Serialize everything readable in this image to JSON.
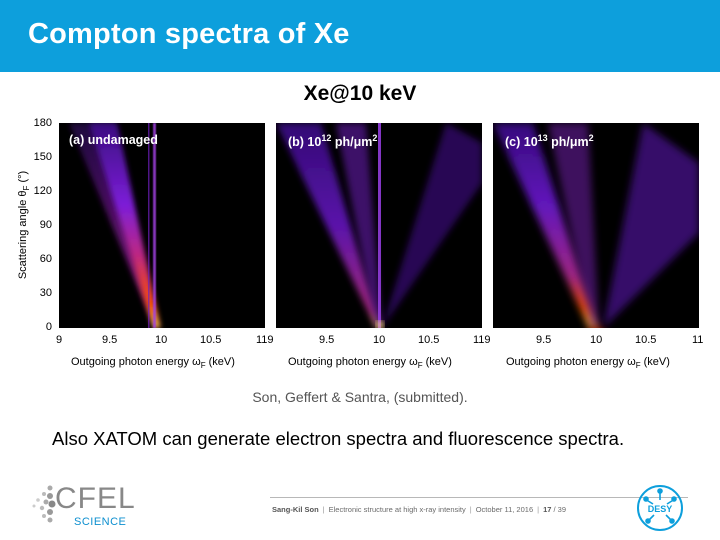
{
  "slide": {
    "title": "Compton spectra of Xe",
    "figure_title": "Xe@10 keV",
    "citation": "Son, Geffert & Santra, (submitted).",
    "statement": "Also XATOM can generate electron spectra and fluorescence spectra."
  },
  "chart_data": {
    "type": "heatmap",
    "title": "Xe@10 keV",
    "ylabel": "Scattering angle θF (°)",
    "xlabel": "Outgoing photon energy ωF (keV)",
    "ylim": [
      0,
      180
    ],
    "xlim": [
      9,
      11
    ],
    "yticks": [
      "0",
      "30",
      "60",
      "90",
      "120",
      "150",
      "180"
    ],
    "xticks": [
      "9",
      "9.5",
      "10",
      "10.5",
      "11"
    ],
    "panels": [
      {
        "label": "(a) undamaged"
      },
      {
        "label_prefix": "(b) 10",
        "label_exp": "12",
        "label_unit": " ph/μm",
        "label_unit_exp": "2"
      },
      {
        "label_prefix": "(c) 10",
        "label_exp": "13",
        "label_unit": " ph/μm",
        "label_unit_exp": "2"
      }
    ],
    "colormap": [
      "#000000",
      "#3a0a6e",
      "#7d1fd0",
      "#c03090",
      "#ff4000",
      "#ffd000",
      "#ffffa0"
    ]
  },
  "axes": {
    "ylabel_main": "Scattering angle θ",
    "ylabel_sub": "F",
    "ylabel_unit": " (°)",
    "xlabel_main": "Outgoing photon energy ω",
    "xlabel_sub": "F",
    "xlabel_unit": " (keV)",
    "edge_tick_ab": "119",
    "edge_tick_bc": "119",
    "edge_tick_right": "11"
  },
  "footer": {
    "author": "Sang-Kil Son",
    "talk": "Electronic structure at high x-ray intensity",
    "date": "October 11, 2016",
    "page": "17",
    "total": "/ 39",
    "sep": "|"
  },
  "logos": {
    "cfel_word": "CFEL",
    "cfel_sub": "SCIENCE",
    "desy_word": "DESY",
    "cfel_color": "#0d8fcf",
    "desy_color": "#0d9fdc",
    "header_color": "#0d9fdc"
  }
}
